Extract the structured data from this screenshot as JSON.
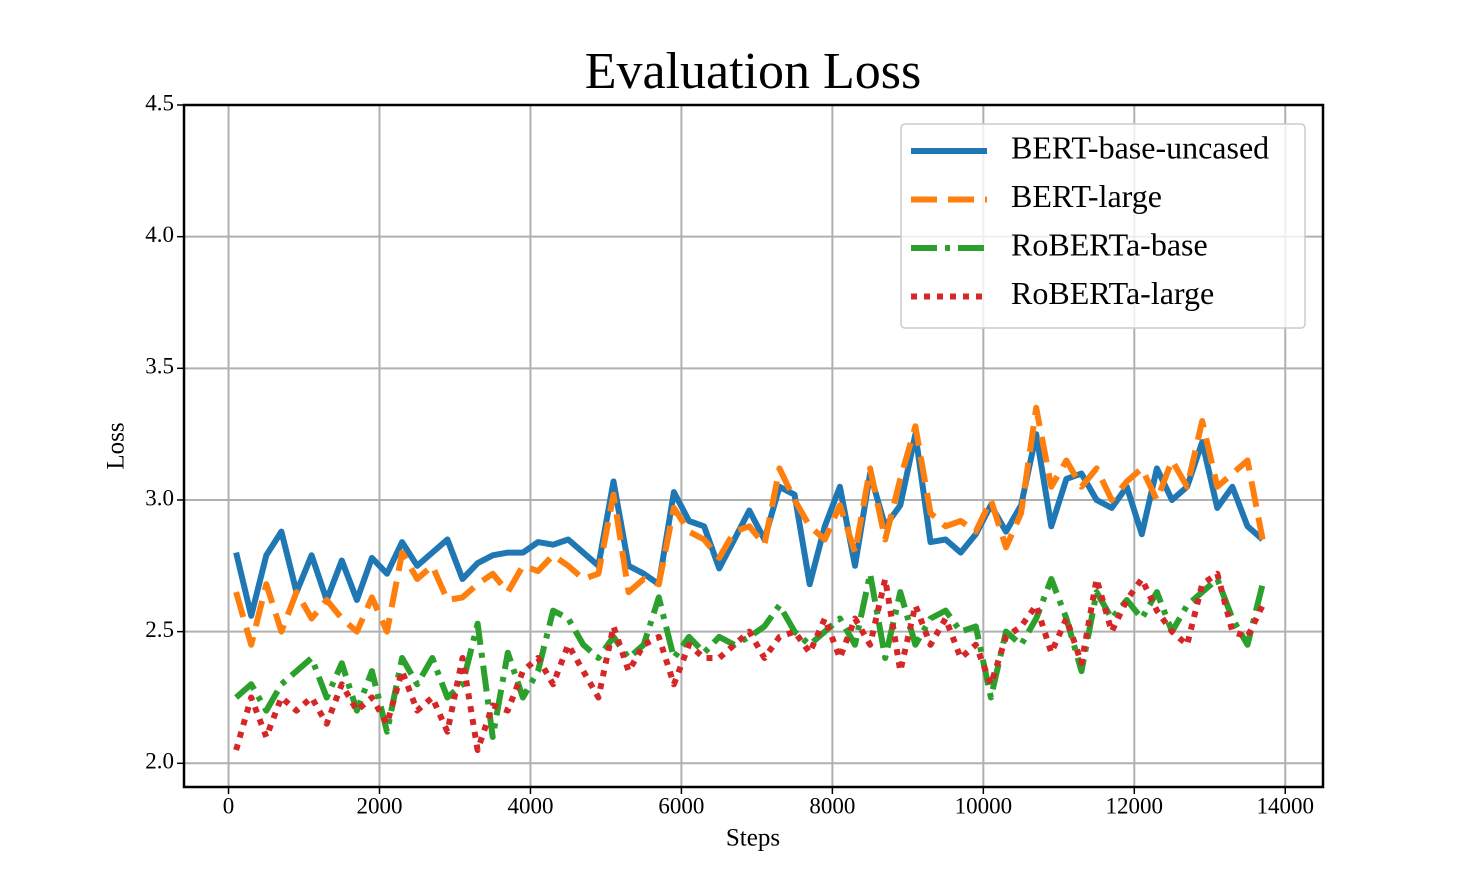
{
  "chart_data": {
    "type": "line",
    "title": "Evaluation Loss",
    "x_label": "Steps",
    "y_label": "Loss",
    "x": [
      100,
      300,
      500,
      700,
      900,
      1100,
      1300,
      1500,
      1700,
      1900,
      2100,
      2300,
      2500,
      2700,
      2900,
      3100,
      3300,
      3500,
      3700,
      3900,
      4100,
      4300,
      4500,
      4700,
      4900,
      5100,
      5300,
      5500,
      5700,
      5900,
      6100,
      6300,
      6500,
      6700,
      6900,
      7100,
      7300,
      7500,
      7700,
      7900,
      8100,
      8300,
      8500,
      8700,
      8900,
      9100,
      9300,
      9500,
      9700,
      9900,
      10100,
      10300,
      10500,
      10700,
      10900,
      11100,
      11300,
      11500,
      11700,
      11900,
      12100,
      12300,
      12500,
      12700,
      12900,
      13100,
      13300,
      13500,
      13700
    ],
    "series": [
      {
        "name": "BERT-base-uncased",
        "color": "#1f77b4",
        "linestyle": "solid",
        "values": [
          2.8,
          2.56,
          2.79,
          2.88,
          2.65,
          2.79,
          2.62,
          2.77,
          2.62,
          2.78,
          2.72,
          2.84,
          2.75,
          2.8,
          2.85,
          2.7,
          2.76,
          2.79,
          2.8,
          2.8,
          2.84,
          2.83,
          2.85,
          2.8,
          2.75,
          3.07,
          2.75,
          2.72,
          2.68,
          3.03,
          2.92,
          2.9,
          2.74,
          2.85,
          2.96,
          2.85,
          3.05,
          3.02,
          2.68,
          2.9,
          3.05,
          2.75,
          3.1,
          2.9,
          2.98,
          3.25,
          2.84,
          2.85,
          2.8,
          2.87,
          2.98,
          2.88,
          2.98,
          3.25,
          2.9,
          3.08,
          3.1,
          3.0,
          2.97,
          3.05,
          2.87,
          3.12,
          3.0,
          3.05,
          3.22,
          2.97,
          3.05,
          2.9,
          2.85
        ]
      },
      {
        "name": "BERT-large",
        "color": "#ff7f0e",
        "linestyle": "dashed",
        "values": [
          2.65,
          2.45,
          2.68,
          2.5,
          2.65,
          2.55,
          2.62,
          2.55,
          2.5,
          2.63,
          2.5,
          2.8,
          2.7,
          2.75,
          2.62,
          2.63,
          2.68,
          2.72,
          2.65,
          2.75,
          2.73,
          2.79,
          2.75,
          2.7,
          2.72,
          3.02,
          2.65,
          2.7,
          2.68,
          2.97,
          2.88,
          2.85,
          2.78,
          2.88,
          2.9,
          2.83,
          3.12,
          3.0,
          2.9,
          2.85,
          2.98,
          2.8,
          3.12,
          2.85,
          3.08,
          3.28,
          2.95,
          2.9,
          2.92,
          2.88,
          3.0,
          2.82,
          2.95,
          3.35,
          3.05,
          3.15,
          3.05,
          3.12,
          3.0,
          3.07,
          3.12,
          3.0,
          3.15,
          3.05,
          3.3,
          3.05,
          3.1,
          3.15,
          2.85
        ]
      },
      {
        "name": "RoBERTa-base",
        "color": "#2ca02c",
        "linestyle": "dashdot",
        "values": [
          2.25,
          2.3,
          2.2,
          2.3,
          2.35,
          2.4,
          2.25,
          2.38,
          2.2,
          2.35,
          2.12,
          2.4,
          2.3,
          2.4,
          2.25,
          2.3,
          2.53,
          2.1,
          2.42,
          2.25,
          2.35,
          2.58,
          2.55,
          2.45,
          2.4,
          2.48,
          2.4,
          2.45,
          2.63,
          2.4,
          2.48,
          2.42,
          2.48,
          2.45,
          2.48,
          2.52,
          2.6,
          2.5,
          2.45,
          2.5,
          2.55,
          2.45,
          2.72,
          2.4,
          2.65,
          2.45,
          2.55,
          2.58,
          2.5,
          2.52,
          2.25,
          2.5,
          2.45,
          2.55,
          2.7,
          2.55,
          2.35,
          2.65,
          2.55,
          2.62,
          2.55,
          2.65,
          2.5,
          2.6,
          2.65,
          2.7,
          2.55,
          2.45,
          2.68
        ]
      },
      {
        "name": "RoBERTa-large",
        "color": "#d62728",
        "linestyle": "dotted",
        "values": [
          2.05,
          2.25,
          2.1,
          2.25,
          2.2,
          2.25,
          2.15,
          2.3,
          2.2,
          2.25,
          2.15,
          2.35,
          2.2,
          2.25,
          2.12,
          2.4,
          2.05,
          2.22,
          2.2,
          2.35,
          2.4,
          2.3,
          2.45,
          2.35,
          2.25,
          2.52,
          2.35,
          2.45,
          2.48,
          2.3,
          2.45,
          2.4,
          2.4,
          2.45,
          2.5,
          2.4,
          2.48,
          2.5,
          2.42,
          2.55,
          2.4,
          2.55,
          2.45,
          2.7,
          2.35,
          2.6,
          2.45,
          2.55,
          2.4,
          2.45,
          2.3,
          2.48,
          2.52,
          2.6,
          2.42,
          2.55,
          2.38,
          2.7,
          2.5,
          2.62,
          2.7,
          2.58,
          2.5,
          2.45,
          2.68,
          2.72,
          2.5,
          2.48,
          2.6
        ]
      }
    ],
    "xlim": [
      -590,
      14500
    ],
    "xticks": [
      0,
      2000,
      4000,
      6000,
      8000,
      10000,
      12000,
      14000
    ],
    "ylim": [
      1.91,
      4.5
    ],
    "yticks": [
      {
        "value": 2,
        "label": "2.0"
      },
      2.5,
      {
        "value": 3,
        "label": "3.0"
      },
      3.5,
      {
        "value": 4,
        "label": "4.0"
      },
      4.5
    ],
    "grid": true,
    "legend": "upper right"
  }
}
